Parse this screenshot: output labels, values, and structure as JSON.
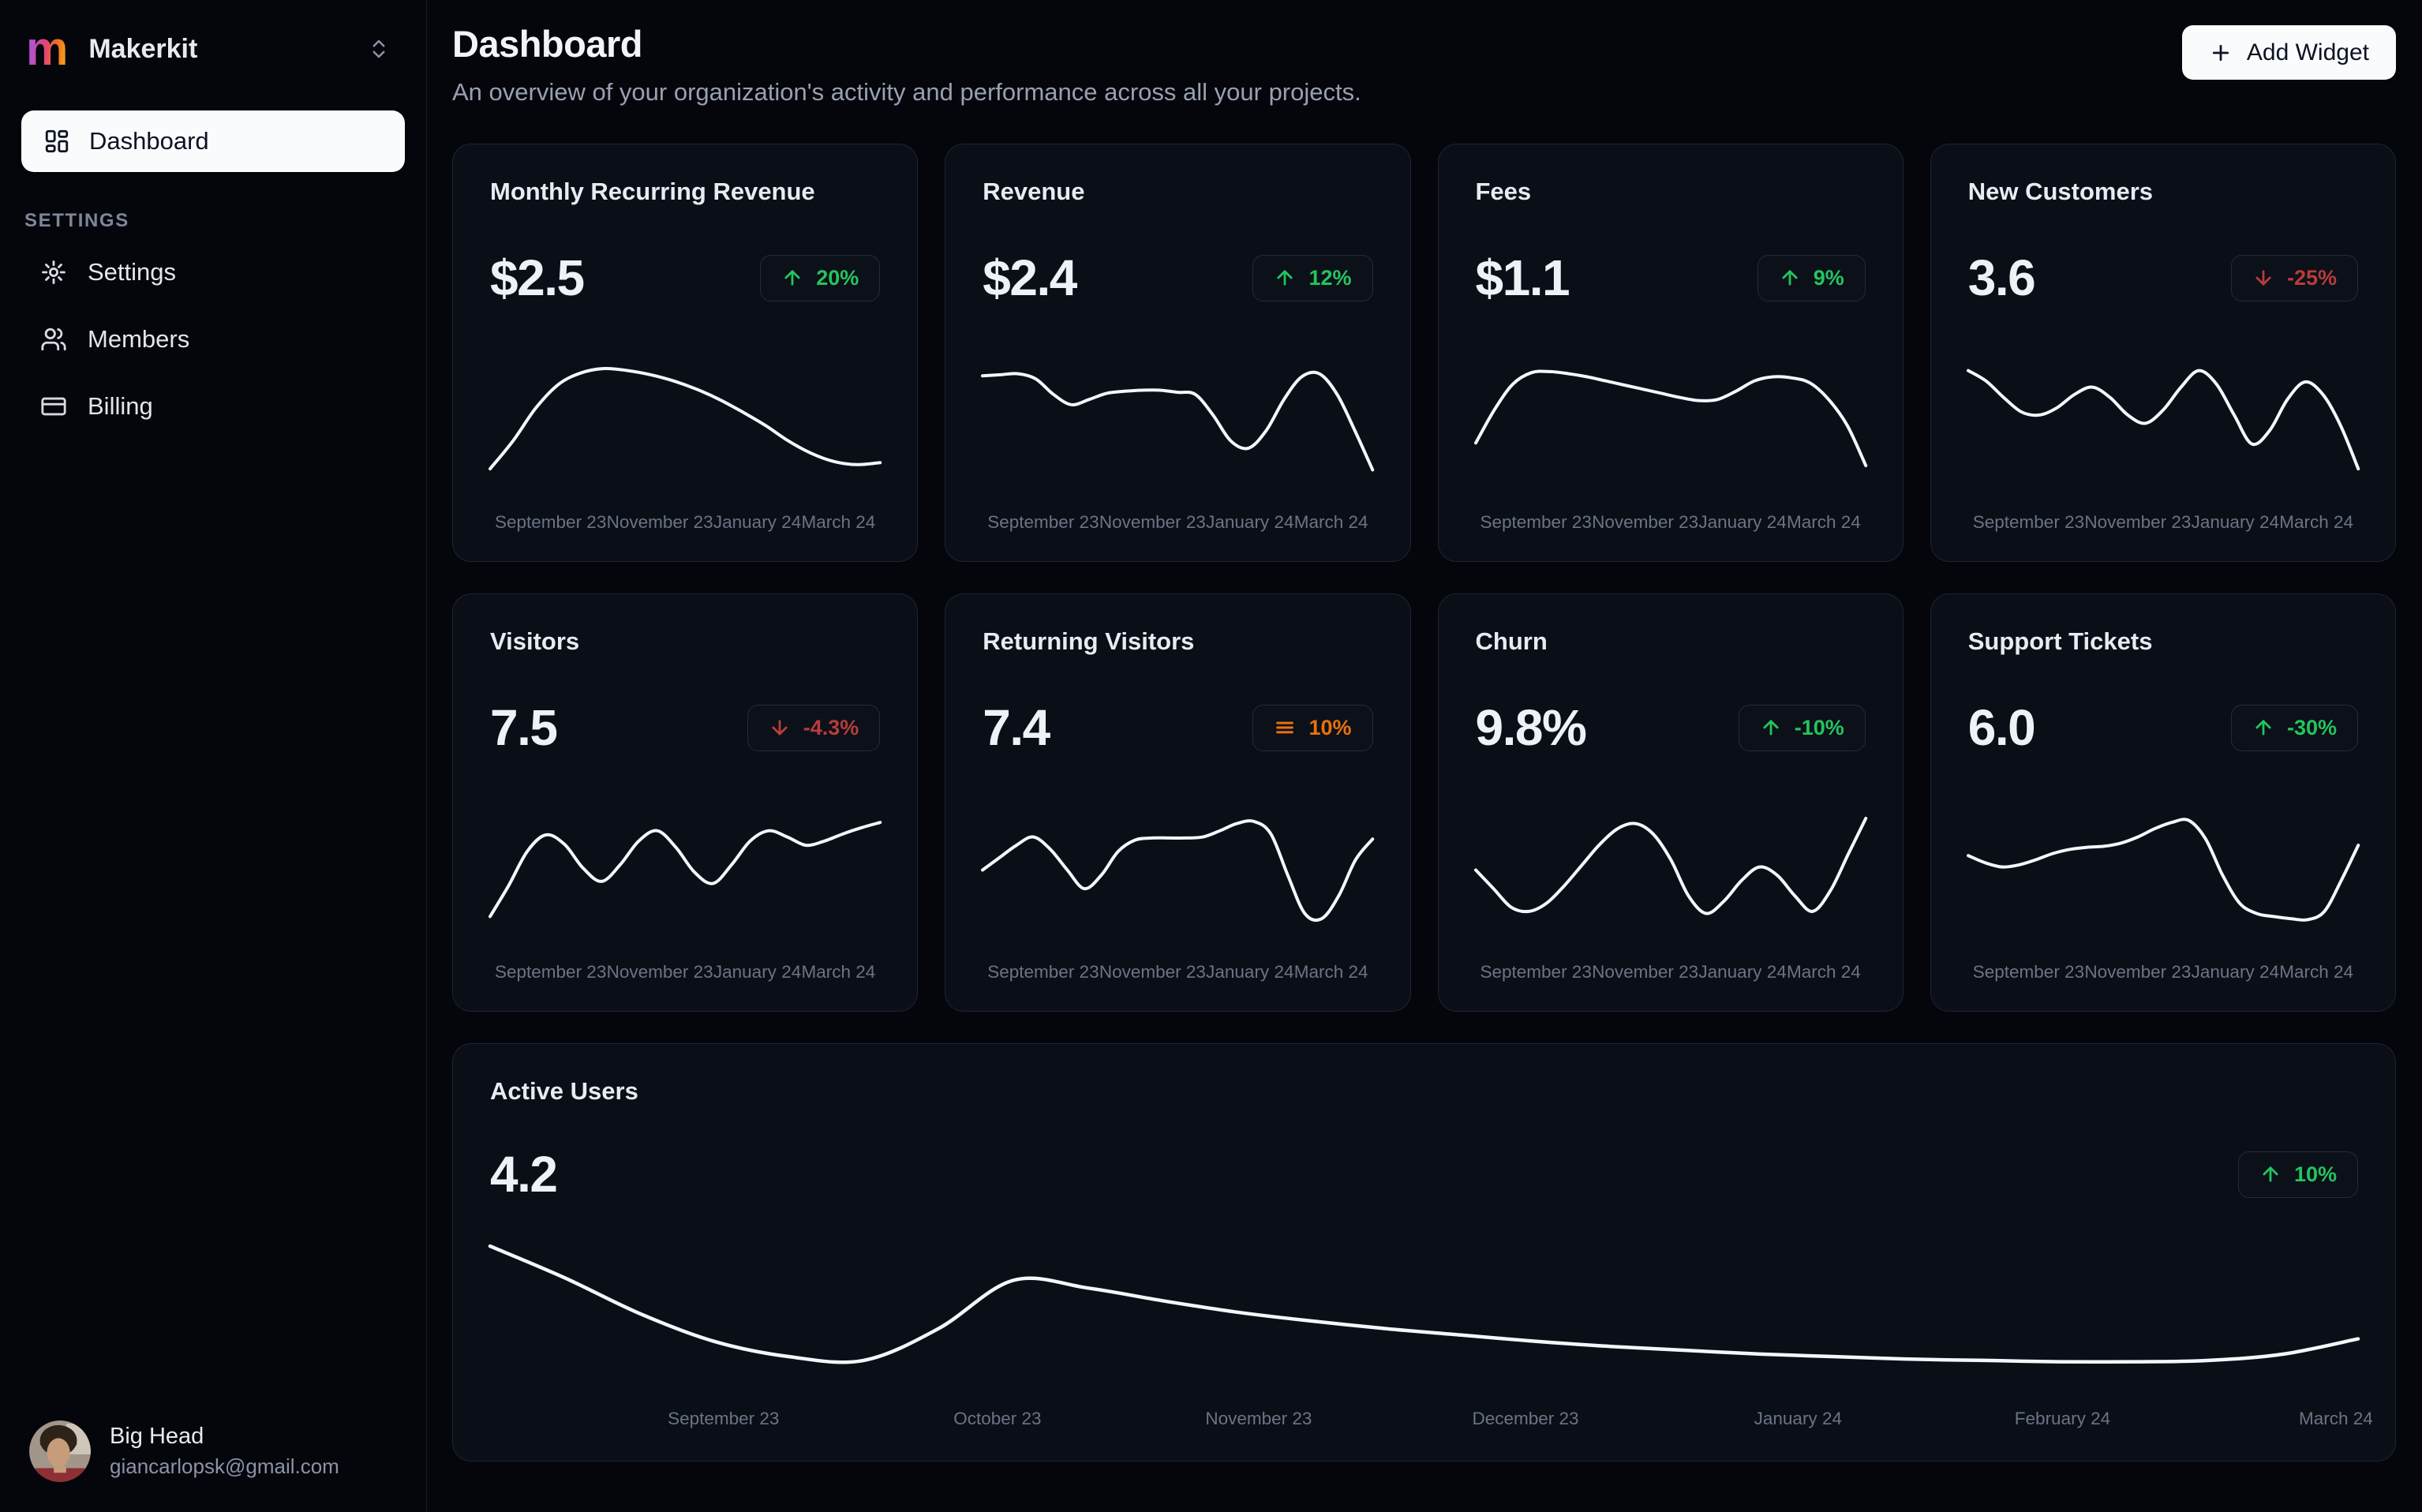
{
  "sidebar": {
    "workspace": {
      "logo_letter": "m",
      "name": "Makerkit"
    },
    "nav_dashboard": "Dashboard",
    "section_label": "SETTINGS",
    "items": [
      {
        "label": "Settings"
      },
      {
        "label": "Members"
      },
      {
        "label": "Billing"
      }
    ],
    "user": {
      "name": "Big Head",
      "email": "giancarlopsk@gmail.com"
    }
  },
  "header": {
    "title": "Dashboard",
    "subtitle": "An overview of your organization's activity and performance across all your projects.",
    "add_widget": "Add Widget"
  },
  "colors": {
    "background": "#04060c",
    "card_bg": "#0a0e17",
    "card_border": "#1d2433",
    "line": "#f4f6f9",
    "green": "#22c55e",
    "red": "#b83c3c",
    "orange": "#e8720c",
    "muted": "#6c7383"
  },
  "small_card_x_labels": [
    "September 23",
    "November 23",
    "January 24",
    "March 24"
  ],
  "chart_data": [
    {
      "id": "monthly-recurring-revenue",
      "type": "line",
      "title": "Monthly Recurring Revenue",
      "value": "$2.5",
      "badge": {
        "trend": "up",
        "label": "20%",
        "color": "#22c55e"
      },
      "x_labels": [
        "September 23",
        "November 23",
        "January 24",
        "March 24"
      ],
      "y_normalized": [
        0.03,
        0.3,
        0.62,
        0.85,
        0.96,
        1.0,
        0.98,
        0.94,
        0.88,
        0.8,
        0.7,
        0.58,
        0.45,
        0.3,
        0.18,
        0.1,
        0.07,
        0.09
      ]
    },
    {
      "id": "revenue",
      "type": "line",
      "title": "Revenue",
      "value": "$2.4",
      "badge": {
        "trend": "up",
        "label": "12%",
        "color": "#22c55e"
      },
      "x_labels": [
        "September 23",
        "November 23",
        "January 24",
        "March 24"
      ],
      "y_normalized": [
        0.93,
        0.94,
        0.95,
        0.9,
        0.75,
        0.65,
        0.7,
        0.76,
        0.78,
        0.79,
        0.79,
        0.77,
        0.75,
        0.55,
        0.3,
        0.23,
        0.4,
        0.7,
        0.92,
        0.95,
        0.75,
        0.4,
        0.02
      ]
    },
    {
      "id": "fees",
      "type": "line",
      "title": "Fees",
      "value": "$1.1",
      "badge": {
        "trend": "up",
        "label": "9%",
        "color": "#22c55e"
      },
      "x_labels": [
        "September 23",
        "November 23",
        "January 24",
        "March 24"
      ],
      "y_normalized": [
        0.28,
        0.6,
        0.85,
        0.96,
        0.97,
        0.95,
        0.92,
        0.88,
        0.84,
        0.8,
        0.76,
        0.72,
        0.69,
        0.7,
        0.78,
        0.88,
        0.92,
        0.91,
        0.86,
        0.7,
        0.45,
        0.06
      ]
    },
    {
      "id": "new-customers",
      "type": "line",
      "title": "New Customers",
      "value": "3.6",
      "badge": {
        "trend": "down",
        "label": "-25%",
        "color": "#b83c3c"
      },
      "x_labels": [
        "September 23",
        "November 23",
        "January 24",
        "March 24"
      ],
      "y_normalized": [
        0.98,
        0.88,
        0.72,
        0.58,
        0.55,
        0.62,
        0.75,
        0.82,
        0.72,
        0.55,
        0.47,
        0.6,
        0.82,
        0.98,
        0.85,
        0.55,
        0.27,
        0.4,
        0.7,
        0.87,
        0.75,
        0.45,
        0.03
      ]
    },
    {
      "id": "visitors",
      "type": "line",
      "title": "Visitors",
      "value": "7.5",
      "badge": {
        "trend": "down",
        "label": "-4.3%",
        "color": "#b83c3c"
      },
      "x_labels": [
        "September 23",
        "November 23",
        "January 24",
        "March 24"
      ],
      "y_normalized": [
        0.05,
        0.35,
        0.68,
        0.84,
        0.75,
        0.52,
        0.39,
        0.55,
        0.78,
        0.88,
        0.72,
        0.48,
        0.37,
        0.55,
        0.78,
        0.88,
        0.82,
        0.74,
        0.78,
        0.85,
        0.91,
        0.96
      ]
    },
    {
      "id": "returning-visitors",
      "type": "line",
      "title": "Returning Visitors",
      "value": "7.4",
      "badge": {
        "trend": "neutral",
        "label": "10%",
        "color": "#e8720c"
      },
      "x_labels": [
        "September 23",
        "November 23",
        "January 24",
        "March 24"
      ],
      "y_normalized": [
        0.5,
        0.62,
        0.74,
        0.82,
        0.7,
        0.5,
        0.32,
        0.45,
        0.68,
        0.79,
        0.81,
        0.81,
        0.81,
        0.82,
        0.88,
        0.95,
        0.97,
        0.85,
        0.45,
        0.08,
        0.03,
        0.25,
        0.6,
        0.8
      ]
    },
    {
      "id": "churn",
      "type": "line",
      "title": "Churn",
      "value": "9.8%",
      "badge": {
        "trend": "up",
        "label": "-10%",
        "color": "#22c55e"
      },
      "x_labels": [
        "September 23",
        "November 23",
        "January 24",
        "March 24"
      ],
      "y_normalized": [
        0.5,
        0.32,
        0.14,
        0.1,
        0.18,
        0.35,
        0.55,
        0.75,
        0.9,
        0.95,
        0.85,
        0.6,
        0.25,
        0.08,
        0.2,
        0.4,
        0.53,
        0.45,
        0.25,
        0.1,
        0.3,
        0.65,
        1.0
      ]
    },
    {
      "id": "support-tickets",
      "type": "line",
      "title": "Support Tickets",
      "value": "6.0",
      "badge": {
        "trend": "up",
        "label": "-30%",
        "color": "#22c55e"
      },
      "x_labels": [
        "September 23",
        "November 23",
        "January 24",
        "March 24"
      ],
      "y_normalized": [
        0.64,
        0.57,
        0.53,
        0.55,
        0.6,
        0.66,
        0.7,
        0.72,
        0.73,
        0.76,
        0.82,
        0.9,
        0.96,
        0.98,
        0.8,
        0.45,
        0.18,
        0.08,
        0.05,
        0.03,
        0.02,
        0.1,
        0.4,
        0.74
      ]
    },
    {
      "id": "active-users",
      "type": "line",
      "title": "Active Users",
      "value": "4.2",
      "badge": {
        "trend": "up",
        "label": "10%",
        "color": "#22c55e"
      },
      "x_labels": [
        "September 23",
        "October 23",
        "November 23",
        "December 23",
        "January 24",
        "February 24",
        "March 24"
      ],
      "y_normalized": [
        0.95,
        0.7,
        0.42,
        0.2,
        0.08,
        0.05,
        0.3,
        0.68,
        0.62,
        0.52,
        0.43,
        0.36,
        0.3,
        0.25,
        0.2,
        0.16,
        0.13,
        0.1,
        0.08,
        0.06,
        0.05,
        0.04,
        0.04,
        0.05,
        0.1,
        0.22
      ]
    }
  ]
}
